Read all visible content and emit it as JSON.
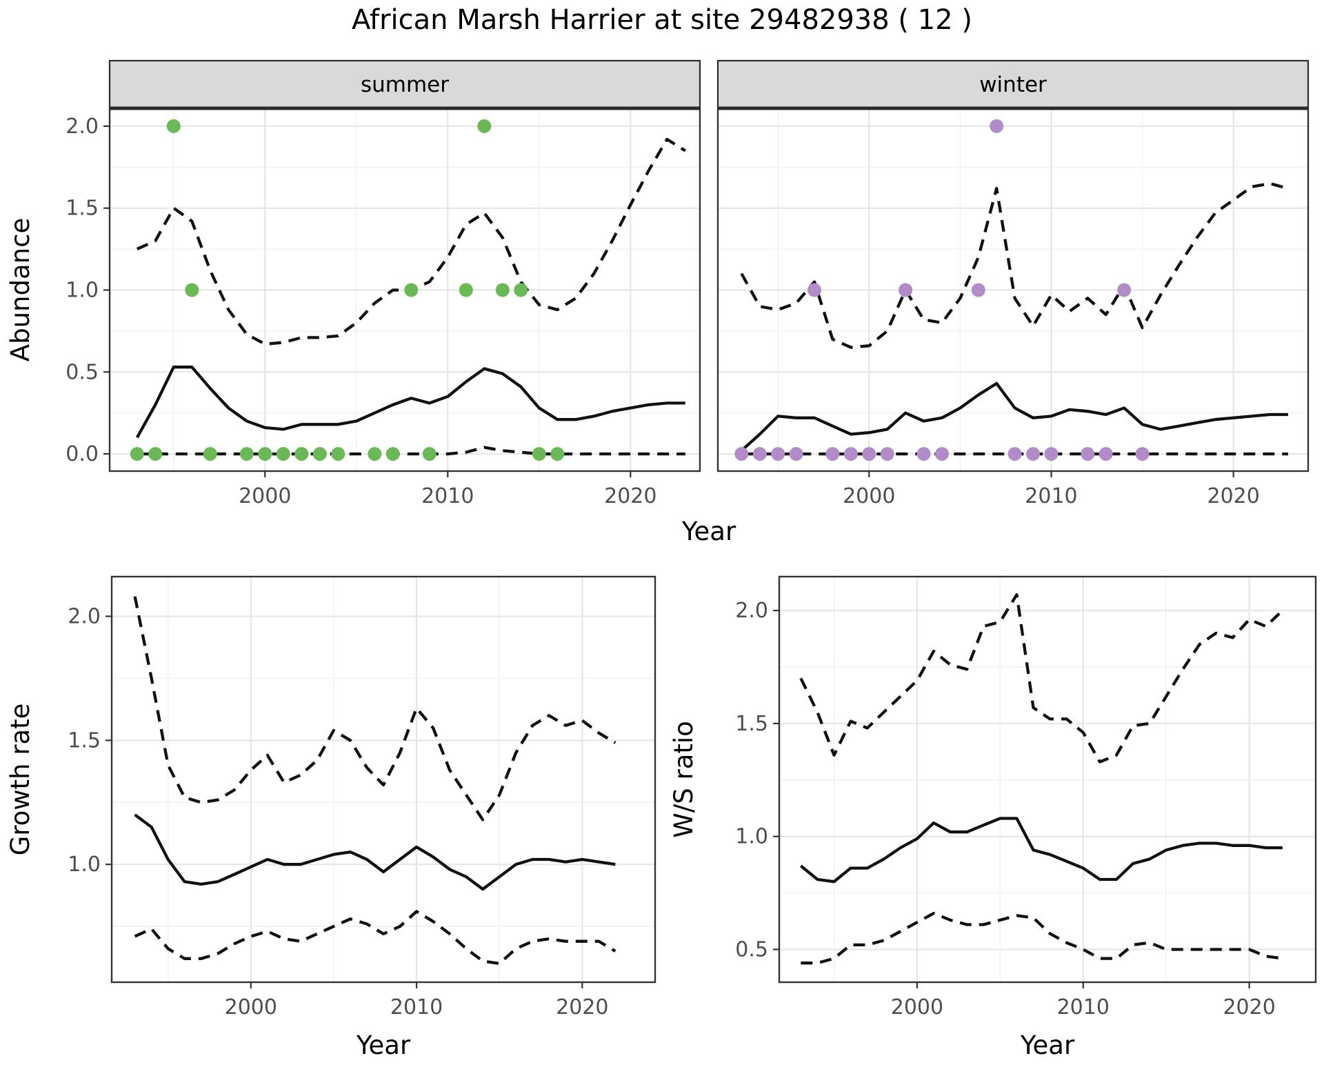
{
  "title": "African Marsh Harrier at site 29482938 ( 12 )",
  "theme": {
    "background": "#ffffff",
    "panel_bg": "#ffffff",
    "panel_border": "#333333",
    "strip_fill": "#d9d9d9",
    "strip_border": "#2a2a2a",
    "grid_major": "#e6e6e6",
    "grid_minor": "#f2f2f2",
    "line_color": "#111111",
    "tick_color": "#333333",
    "tick_label_color": "#4d4d4d",
    "text_color": "#000000",
    "summer_point_color": "#6ab956",
    "winter_point_color": "#b28cc8"
  },
  "axis_titles": [
    {
      "id": "abundance-ylabel",
      "text": "Abundance"
    },
    {
      "id": "top-xlabel",
      "text": "Year"
    },
    {
      "id": "growth-rate-ylabel",
      "text": "Growth rate"
    },
    {
      "id": "growth-rate-xlabel",
      "text": "Year"
    },
    {
      "id": "ws-ratio-ylabel",
      "text": "W/S ratio"
    },
    {
      "id": "ws-ratio-xlabel",
      "text": "Year"
    }
  ],
  "chart_data": [
    {
      "id": "abundance_summer",
      "type": "line",
      "facet_label": "summer",
      "ylabel": "Abundance",
      "xlabel": "Year",
      "xlim": [
        1991.5,
        2023.8
      ],
      "ylim": [
        -0.105,
        2.105
      ],
      "x_ticks": [
        {
          "v": 2000,
          "label": "2000"
        },
        {
          "v": 2010,
          "label": "2010"
        },
        {
          "v": 2020,
          "label": "2020"
        }
      ],
      "y_ticks": [
        {
          "v": 0,
          "label": "0.0"
        },
        {
          "v": 0.5,
          "label": "0.5"
        },
        {
          "v": 1,
          "label": "1.0"
        },
        {
          "v": 1.5,
          "label": "1.5"
        },
        {
          "v": 2,
          "label": "2.0"
        }
      ],
      "x_minor": [
        1995,
        2005,
        2015
      ],
      "y_minor": [
        0.25,
        0.75,
        1.25,
        1.75
      ],
      "show_y_labels": true,
      "x": [
        1993,
        1994,
        1995,
        1996,
        1997,
        1998,
        1999,
        2000,
        2001,
        2002,
        2003,
        2004,
        2005,
        2006,
        2007,
        2008,
        2009,
        2010,
        2011,
        2012,
        2013,
        2014,
        2015,
        2016,
        2017,
        2018,
        2019,
        2020,
        2021,
        2022,
        2023
      ],
      "series": [
        {
          "name": "median",
          "linetype": "solid",
          "values": [
            0.1,
            0.3,
            0.53,
            0.53,
            0.4,
            0.28,
            0.2,
            0.16,
            0.15,
            0.18,
            0.18,
            0.18,
            0.2,
            0.25,
            0.3,
            0.34,
            0.31,
            0.35,
            0.44,
            0.52,
            0.49,
            0.41,
            0.28,
            0.21,
            0.21,
            0.23,
            0.26,
            0.28,
            0.3,
            0.31,
            0.31
          ]
        },
        {
          "name": "upper-credible",
          "linetype": "dashed",
          "values": [
            1.25,
            1.3,
            1.5,
            1.42,
            1.12,
            0.88,
            0.73,
            0.67,
            0.68,
            0.71,
            0.71,
            0.72,
            0.8,
            0.92,
            1.0,
            1.0,
            1.05,
            1.2,
            1.4,
            1.47,
            1.32,
            1.05,
            0.91,
            0.88,
            0.95,
            1.1,
            1.3,
            1.52,
            1.73,
            1.92,
            1.85
          ]
        },
        {
          "name": "lower-credible",
          "linetype": "dashed",
          "values": [
            0,
            0,
            0,
            0,
            0,
            0,
            0,
            0,
            0,
            0,
            0,
            0,
            0,
            0,
            0,
            0,
            0,
            0,
            0.01,
            0.04,
            0.02,
            0.01,
            0,
            0,
            0,
            0,
            0,
            0,
            0,
            0,
            0
          ]
        }
      ],
      "points": {
        "name": "observed-count-summer",
        "color_key": "summer_point_color",
        "x": [
          1993,
          1994,
          1997,
          1999,
          2000,
          2001,
          2002,
          2003,
          2004,
          2006,
          2007,
          2009,
          2015,
          2016,
          1996,
          2008,
          2011,
          2013,
          2014,
          1995,
          2012
        ],
        "y": [
          0,
          0,
          0,
          0,
          0,
          0,
          0,
          0,
          0,
          0,
          0,
          0,
          0,
          0,
          1,
          1,
          1,
          1,
          1,
          2,
          2
        ]
      }
    },
    {
      "id": "abundance_winter",
      "type": "line",
      "facet_label": "winter",
      "ylabel": "",
      "xlabel": "Year",
      "xlim": [
        1991.7,
        2024.1
      ],
      "ylim": [
        -0.105,
        2.105
      ],
      "x_ticks": [
        {
          "v": 2000,
          "label": "2000"
        },
        {
          "v": 2010,
          "label": "2010"
        },
        {
          "v": 2020,
          "label": "2020"
        }
      ],
      "y_ticks": [
        {
          "v": 0,
          "label": "0.0"
        },
        {
          "v": 0.5,
          "label": "0.5"
        },
        {
          "v": 1,
          "label": "1.0"
        },
        {
          "v": 1.5,
          "label": "1.5"
        },
        {
          "v": 2,
          "label": "2.0"
        }
      ],
      "x_minor": [
        1995,
        2005,
        2015
      ],
      "y_minor": [
        0.25,
        0.75,
        1.25,
        1.75
      ],
      "show_y_labels": false,
      "x": [
        1993,
        1994,
        1995,
        1996,
        1997,
        1998,
        1999,
        2000,
        2001,
        2002,
        2003,
        2004,
        2005,
        2006,
        2007,
        2008,
        2009,
        2010,
        2011,
        2012,
        2013,
        2014,
        2015,
        2016,
        2017,
        2018,
        2019,
        2020,
        2021,
        2022,
        2023
      ],
      "series": [
        {
          "name": "median",
          "linetype": "solid",
          "values": [
            0.02,
            0.12,
            0.23,
            0.22,
            0.22,
            0.17,
            0.12,
            0.13,
            0.15,
            0.25,
            0.2,
            0.22,
            0.28,
            0.36,
            0.43,
            0.28,
            0.22,
            0.23,
            0.27,
            0.26,
            0.24,
            0.28,
            0.18,
            0.15,
            0.17,
            0.19,
            0.21,
            0.22,
            0.23,
            0.24,
            0.24
          ]
        },
        {
          "name": "upper-credible",
          "linetype": "dashed",
          "values": [
            1.1,
            0.9,
            0.88,
            0.92,
            1.05,
            0.7,
            0.65,
            0.66,
            0.75,
            1.0,
            0.82,
            0.8,
            0.95,
            1.2,
            1.62,
            0.95,
            0.78,
            0.97,
            0.87,
            0.95,
            0.85,
            1.03,
            0.77,
            0.97,
            1.15,
            1.32,
            1.47,
            1.55,
            1.63,
            1.65,
            1.62
          ]
        },
        {
          "name": "lower-credible",
          "linetype": "dashed",
          "values": [
            0,
            0,
            0,
            0,
            0,
            0,
            0,
            0,
            0,
            0,
            0,
            0,
            0,
            0,
            0,
            0,
            0,
            0,
            0,
            0,
            0,
            0,
            0,
            0,
            0,
            0,
            0,
            0,
            0,
            0,
            0
          ]
        }
      ],
      "points": {
        "name": "observed-count-winter",
        "color_key": "winter_point_color",
        "x": [
          1993,
          1994,
          1995,
          1996,
          1998,
          1999,
          2000,
          2001,
          2003,
          2004,
          2008,
          2009,
          2010,
          2012,
          2013,
          2015,
          1997,
          2002,
          2006,
          2014,
          2007
        ],
        "y": [
          0,
          0,
          0,
          0,
          0,
          0,
          0,
          0,
          0,
          0,
          0,
          0,
          0,
          0,
          0,
          0,
          1,
          1,
          1,
          1,
          2
        ]
      }
    },
    {
      "id": "growth_rate",
      "type": "line",
      "facet_label": "",
      "ylabel": "Growth rate",
      "xlabel": "Year",
      "xlim": [
        1991.6,
        2024.4
      ],
      "ylim": [
        0.525,
        2.16
      ],
      "x_ticks": [
        {
          "v": 2000,
          "label": "2000"
        },
        {
          "v": 2010,
          "label": "2010"
        },
        {
          "v": 2020,
          "label": "2020"
        }
      ],
      "y_ticks": [
        {
          "v": 1,
          "label": "1.0"
        },
        {
          "v": 1.5,
          "label": "1.5"
        },
        {
          "v": 2,
          "label": "2.0"
        }
      ],
      "x_minor": [
        1995,
        2005,
        2015
      ],
      "y_minor": [
        0.75,
        1.25,
        1.75
      ],
      "show_y_labels": true,
      "x": [
        1993,
        1994,
        1995,
        1996,
        1997,
        1998,
        1999,
        2000,
        2001,
        2002,
        2003,
        2004,
        2005,
        2006,
        2007,
        2008,
        2009,
        2010,
        2011,
        2012,
        2013,
        2014,
        2015,
        2016,
        2017,
        2018,
        2019,
        2020,
        2021,
        2022
      ],
      "series": [
        {
          "name": "median",
          "linetype": "solid",
          "values": [
            1.2,
            1.15,
            1.02,
            0.93,
            0.92,
            0.93,
            0.96,
            0.99,
            1.02,
            1.0,
            1.0,
            1.02,
            1.04,
            1.05,
            1.02,
            0.97,
            1.02,
            1.07,
            1.03,
            0.98,
            0.95,
            0.9,
            0.95,
            1.0,
            1.02,
            1.02,
            1.01,
            1.02,
            1.01,
            1.0
          ]
        },
        {
          "name": "upper-credible",
          "linetype": "dashed",
          "values": [
            2.08,
            1.75,
            1.4,
            1.27,
            1.25,
            1.26,
            1.3,
            1.38,
            1.44,
            1.33,
            1.36,
            1.42,
            1.54,
            1.5,
            1.39,
            1.32,
            1.45,
            1.63,
            1.55,
            1.38,
            1.28,
            1.18,
            1.28,
            1.45,
            1.56,
            1.6,
            1.56,
            1.58,
            1.53,
            1.49
          ]
        },
        {
          "name": "lower-credible",
          "linetype": "dashed",
          "values": [
            0.71,
            0.74,
            0.66,
            0.62,
            0.62,
            0.64,
            0.68,
            0.71,
            0.73,
            0.7,
            0.69,
            0.72,
            0.75,
            0.78,
            0.76,
            0.72,
            0.75,
            0.81,
            0.77,
            0.72,
            0.66,
            0.61,
            0.6,
            0.66,
            0.69,
            0.7,
            0.69,
            0.69,
            0.69,
            0.65
          ]
        }
      ],
      "points": null
    },
    {
      "id": "ws_ratio",
      "type": "line",
      "facet_label": "",
      "ylabel": "W/S ratio",
      "xlabel": "Year",
      "xlim": [
        1991.7,
        2024.0
      ],
      "ylim": [
        0.355,
        2.15
      ],
      "x_ticks": [
        {
          "v": 2000,
          "label": "2000"
        },
        {
          "v": 2010,
          "label": "2010"
        },
        {
          "v": 2020,
          "label": "2020"
        }
      ],
      "y_ticks": [
        {
          "v": 0.5,
          "label": "0.5"
        },
        {
          "v": 1,
          "label": "1.0"
        },
        {
          "v": 1.5,
          "label": "1.5"
        },
        {
          "v": 2,
          "label": "2.0"
        }
      ],
      "x_minor": [
        1995,
        2005,
        2015
      ],
      "y_minor": [
        0.75,
        1.25,
        1.75
      ],
      "show_y_labels": true,
      "x": [
        1993,
        1994,
        1995,
        1996,
        1997,
        1998,
        1999,
        2000,
        2001,
        2002,
        2003,
        2004,
        2005,
        2006,
        2007,
        2008,
        2009,
        2010,
        2011,
        2012,
        2013,
        2014,
        2015,
        2016,
        2017,
        2018,
        2019,
        2020,
        2021,
        2022
      ],
      "series": [
        {
          "name": "median",
          "linetype": "solid",
          "values": [
            0.87,
            0.81,
            0.8,
            0.86,
            0.86,
            0.9,
            0.95,
            0.99,
            1.06,
            1.02,
            1.02,
            1.05,
            1.08,
            1.08,
            0.94,
            0.92,
            0.89,
            0.86,
            0.81,
            0.81,
            0.88,
            0.9,
            0.94,
            0.96,
            0.97,
            0.97,
            0.96,
            0.96,
            0.95,
            0.95
          ]
        },
        {
          "name": "upper-credible",
          "linetype": "dashed",
          "values": [
            1.7,
            1.55,
            1.36,
            1.51,
            1.48,
            1.55,
            1.62,
            1.69,
            1.82,
            1.76,
            1.74,
            1.93,
            1.95,
            2.07,
            1.57,
            1.52,
            1.52,
            1.46,
            1.33,
            1.36,
            1.49,
            1.5,
            1.62,
            1.74,
            1.85,
            1.9,
            1.88,
            1.96,
            1.93,
            2.0
          ]
        },
        {
          "name": "lower-credible",
          "linetype": "dashed",
          "values": [
            0.44,
            0.44,
            0.46,
            0.52,
            0.52,
            0.54,
            0.58,
            0.62,
            0.66,
            0.63,
            0.61,
            0.61,
            0.63,
            0.65,
            0.64,
            0.57,
            0.53,
            0.5,
            0.46,
            0.46,
            0.52,
            0.53,
            0.5,
            0.5,
            0.5,
            0.5,
            0.5,
            0.5,
            0.47,
            0.46
          ]
        }
      ],
      "points": null
    }
  ]
}
